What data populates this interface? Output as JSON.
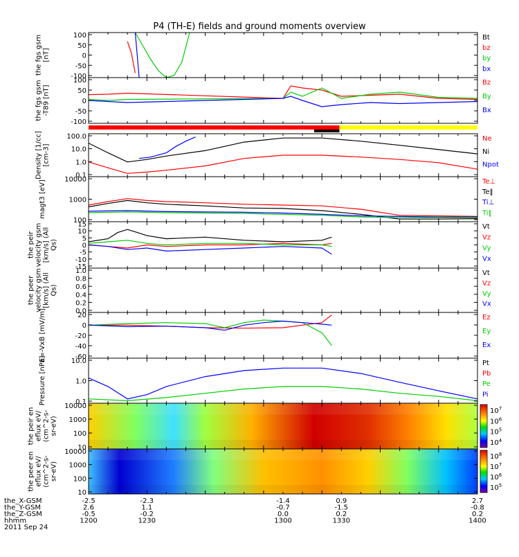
{
  "title": "P4 (TH-E) fields and ground moments overview",
  "bottom_rows": [
    {
      "label": "the_X-GSM",
      "values": [
        "-2.5",
        "-2.3",
        "-1.4",
        "0.9",
        "2.7"
      ]
    },
    {
      "label": "the_Y-GSM",
      "values": [
        "2.6",
        "1.1",
        "-0.7",
        "-1.5",
        "-0.8"
      ]
    },
    {
      "label": "the_Z-GSM",
      "values": [
        "-0.5",
        "-0.2",
        "0.0",
        "0.2",
        "0.2"
      ]
    },
    {
      "label": "hhmm",
      "values": [
        "1200",
        "1230",
        "1300",
        "1330",
        "1400"
      ]
    }
  ],
  "date_label": "2011 Sep 24",
  "colors": {
    "black": "#000000",
    "red": "#ff0000",
    "green": "#00cc00",
    "blue": "#0000ff",
    "yellow": "#ffff00"
  },
  "mode_bar": {
    "segments": [
      {
        "from": 1200,
        "to": 1329,
        "color": "red"
      },
      {
        "from": 1329,
        "to": 1400,
        "color": "yellow"
      },
      {
        "from": 1316,
        "to": 1329,
        "color": "black"
      }
    ]
  },
  "chart_data": [
    {
      "type": "line",
      "panel": "fgs",
      "ylabel": "the fgs gsm [nT]",
      "yticks": [
        "100",
        "50",
        "0",
        "-50",
        "-100"
      ],
      "ylim": [
        -100,
        100
      ],
      "legend": [
        {
          "name": "Bt",
          "color": "black"
        },
        {
          "name": "bz",
          "color": "red"
        },
        {
          "name": "by",
          "color": "green"
        },
        {
          "name": "bx",
          "color": "blue"
        }
      ],
      "series": [
        {
          "name": "by",
          "color": "green",
          "x": [
            1224,
            1228,
            1232,
            1236,
            1240,
            1244,
            1248,
            1252
          ],
          "y": [
            100,
            40,
            -20,
            -70,
            -100,
            -90,
            -30,
            100
          ]
        },
        {
          "name": "bx",
          "color": "blue",
          "x": [
            1224,
            1225,
            1226
          ],
          "y": [
            100,
            0,
            -100
          ]
        },
        {
          "name": "bz",
          "color": "red",
          "x": [
            1220,
            1222,
            1224
          ],
          "y": [
            60,
            10,
            -80
          ]
        }
      ]
    },
    {
      "type": "line",
      "panel": "fgs_t89",
      "ylabel": "the fgs gsm -T89 [nT]",
      "yticks": [
        "100",
        "50",
        "0",
        "-50",
        "-100"
      ],
      "ylim": [
        -110,
        110
      ],
      "legend": [
        {
          "name": "Bz",
          "color": "red"
        },
        {
          "name": "By",
          "color": "green"
        },
        {
          "name": "Bx",
          "color": "blue"
        }
      ],
      "series": [
        {
          "name": "Bz",
          "color": "red",
          "x": [
            1200,
            1210,
            1220,
            1300,
            1304,
            1310,
            1320,
            1330,
            1345,
            1360,
            1380,
            1400
          ],
          "y": [
            28,
            30,
            35,
            10,
            70,
            60,
            50,
            20,
            25,
            30,
            10,
            5
          ]
        },
        {
          "name": "By",
          "color": "green",
          "x": [
            1200,
            1210,
            1220,
            1300,
            1304,
            1310,
            1320,
            1330,
            1345,
            1360,
            1380,
            1400
          ],
          "y": [
            5,
            0,
            5,
            10,
            40,
            20,
            60,
            10,
            30,
            40,
            15,
            10
          ]
        },
        {
          "name": "Bx",
          "color": "blue",
          "x": [
            1200,
            1210,
            1220,
            1300,
            1304,
            1310,
            1320,
            1330,
            1345,
            1360,
            1380,
            1400
          ],
          "y": [
            0,
            -5,
            -10,
            10,
            20,
            0,
            -30,
            -20,
            -10,
            -15,
            -10,
            -5
          ]
        }
      ]
    },
    {
      "type": "line",
      "panel": "density",
      "yscale": "log",
      "ylabel": "Density [1/cc] [cm-3]",
      "yticks": [
        "100.0",
        "10.0",
        "1.0",
        "0.1"
      ],
      "ylim": [
        0.03,
        300
      ],
      "legend": [
        {
          "name": "Ne",
          "color": "red"
        },
        {
          "name": "Ni",
          "color": "black"
        },
        {
          "name": "Npot",
          "color": "blue"
        }
      ],
      "series": [
        {
          "name": "Ni",
          "color": "black",
          "x": [
            1200,
            1210,
            1220,
            1230,
            1240,
            1260,
            1280,
            1300,
            1320,
            1340,
            1360,
            1380,
            1400
          ],
          "y": [
            40,
            5,
            0.7,
            1.2,
            2.5,
            8,
            50,
            120,
            120,
            60,
            25,
            10,
            4
          ]
        },
        {
          "name": "Ne",
          "color": "red",
          "x": [
            1200,
            1210,
            1220,
            1230,
            1240,
            1260,
            1280,
            1300,
            1320,
            1340,
            1360,
            1380,
            1400
          ],
          "y": [
            0.7,
            0.2,
            0.06,
            0.08,
            0.12,
            0.3,
            1.5,
            3,
            3,
            2,
            1.2,
            0.6,
            0.15
          ]
        },
        {
          "name": "Npot",
          "color": "blue",
          "x": [
            1226,
            1232,
            1240,
            1245,
            1250,
            1255
          ],
          "y": [
            1.5,
            2,
            5,
            20,
            60,
            150
          ]
        }
      ]
    },
    {
      "type": "line",
      "panel": "magt3",
      "yscale": "log",
      "ylabel": "magt3 [eV]",
      "yticks": [
        "10000",
        "1000",
        "100"
      ],
      "ylim": [
        90,
        12000
      ],
      "legend": [
        {
          "name": "Te⊥",
          "color": "red"
        },
        {
          "name": "Te‖",
          "color": "black"
        },
        {
          "name": "Ti⊥",
          "color": "blue"
        },
        {
          "name": "Ti‖",
          "color": "green"
        }
      ],
      "series": [
        {
          "name": "Te⊥",
          "color": "red",
          "x": [
            1200,
            1210,
            1220,
            1230,
            1240,
            1260,
            1280,
            1300,
            1320,
            1340,
            1360,
            1380,
            1400
          ],
          "y": [
            550,
            800,
            1100,
            900,
            800,
            700,
            600,
            550,
            500,
            350,
            180,
            170,
            160
          ]
        },
        {
          "name": "Te‖",
          "color": "black",
          "x": [
            1200,
            1210,
            1220,
            1230,
            1240,
            1260,
            1280,
            1300,
            1320,
            1340,
            1360,
            1380,
            1400
          ],
          "y": [
            450,
            650,
            900,
            700,
            600,
            500,
            400,
            380,
            300,
            200,
            120,
            120,
            125
          ]
        },
        {
          "name": "Ti⊥",
          "color": "blue",
          "x": [
            1200,
            1220,
            1240,
            1260,
            1280,
            1300,
            1320,
            1340,
            1360,
            1380,
            1400
          ],
          "y": [
            280,
            300,
            270,
            260,
            250,
            230,
            200,
            170,
            160,
            150,
            150
          ]
        },
        {
          "name": "Ti‖",
          "color": "green",
          "x": [
            1200,
            1220,
            1240,
            1260,
            1280,
            1300,
            1320,
            1340,
            1360,
            1380,
            1400
          ],
          "y": [
            240,
            260,
            240,
            230,
            220,
            200,
            180,
            150,
            140,
            140,
            140
          ]
        }
      ]
    },
    {
      "type": "line",
      "panel": "peir_velocity",
      "ylabel": "the peir velocity gsm [km/s] (All Qs)",
      "yticks": [
        "15",
        "10",
        "5",
        "0",
        "-5",
        "-10",
        "-15"
      ],
      "ylim": [
        -15,
        15
      ],
      "legend": [
        {
          "name": "Vt",
          "color": "black"
        },
        {
          "name": "Vz",
          "color": "red"
        },
        {
          "name": "Vy",
          "color": "green"
        },
        {
          "name": "Vx",
          "color": "blue"
        }
      ],
      "series": [
        {
          "name": "Vt",
          "color": "black",
          "x": [
            1200,
            1210,
            1215,
            1220,
            1225,
            1230,
            1240,
            1260,
            1280,
            1300,
            1320,
            1325
          ],
          "y": [
            2,
            4,
            8,
            10,
            8,
            6,
            4,
            5,
            3,
            2,
            3,
            5
          ]
        },
        {
          "name": "Vz",
          "color": "red",
          "x": [
            1200,
            1210,
            1220,
            1230,
            1240,
            1260,
            1280,
            1300,
            1320,
            1325
          ],
          "y": [
            0,
            -1,
            -2,
            0,
            -1,
            0,
            0,
            1,
            0,
            1
          ]
        },
        {
          "name": "Vy",
          "color": "green",
          "x": [
            1200,
            1210,
            1220,
            1230,
            1240,
            1260,
            1280,
            1300,
            1320,
            1325
          ],
          "y": [
            1,
            2,
            3,
            1,
            0,
            1,
            1,
            0,
            0,
            -1
          ]
        },
        {
          "name": "Vx",
          "color": "blue",
          "x": [
            1200,
            1210,
            1220,
            1230,
            1240,
            1260,
            1280,
            1300,
            1320,
            1325
          ],
          "y": [
            0,
            -1,
            -3,
            -2,
            -4,
            -3,
            -2,
            -1,
            -2,
            -6
          ]
        }
      ]
    },
    {
      "type": "line",
      "panel": "peer_velocity",
      "ylabel": "the peer velocity gsm [km/s] (All Qs)",
      "yticks": [
        "1.0",
        "0.8",
        "0.6",
        "0.4",
        "0.2",
        "0.0"
      ],
      "ylim": [
        0,
        1
      ],
      "legend": [
        {
          "name": "Vt",
          "color": "black"
        },
        {
          "name": "Vz",
          "color": "red"
        },
        {
          "name": "Vy",
          "color": "green"
        },
        {
          "name": "Vx",
          "color": "blue"
        }
      ],
      "series": []
    },
    {
      "type": "line",
      "panel": "efield",
      "ylabel": "E=-VxB [mV/m]",
      "yticks": [
        "20",
        "0",
        "-20",
        "-40",
        "-60"
      ],
      "ylim": [
        -65,
        25
      ],
      "legend": [
        {
          "name": "Ez",
          "color": "red"
        },
        {
          "name": "Ey",
          "color": "green"
        },
        {
          "name": "Ex",
          "color": "blue"
        }
      ],
      "series": [
        {
          "name": "Ez",
          "color": "red",
          "x": [
            1200,
            1220,
            1240,
            1260,
            1280,
            1300,
            1310,
            1320,
            1325
          ],
          "y": [
            0,
            0,
            -2,
            -5,
            -6,
            -5,
            0,
            5,
            20
          ]
        },
        {
          "name": "Ey",
          "color": "green",
          "x": [
            1200,
            1220,
            1240,
            1260,
            1270,
            1280,
            1290,
            1300,
            1310,
            1315,
            1320,
            1325
          ],
          "y": [
            0,
            3,
            5,
            3,
            -5,
            5,
            10,
            8,
            5,
            -5,
            -15,
            -40
          ]
        },
        {
          "name": "Ex",
          "color": "blue",
          "x": [
            1200,
            1220,
            1240,
            1260,
            1270,
            1280,
            1290,
            1300,
            1310,
            1320,
            1325
          ],
          "y": [
            0,
            -3,
            -2,
            -5,
            -10,
            0,
            5,
            8,
            5,
            2,
            0
          ]
        }
      ]
    },
    {
      "type": "line",
      "panel": "pressure",
      "yscale": "log",
      "ylabel": "Pressure [nPa]",
      "yticks": [
        "10.0",
        "1.0",
        "0.1"
      ],
      "ylim": [
        0.02,
        30
      ],
      "legend": [
        {
          "name": "Pt",
          "color": "black"
        },
        {
          "name": "Pb",
          "color": "red"
        },
        {
          "name": "Pe",
          "color": "green"
        },
        {
          "name": "Pi",
          "color": "blue"
        }
      ],
      "series": [
        {
          "name": "Pi",
          "color": "blue",
          "x": [
            1200,
            1210,
            1220,
            1230,
            1240,
            1260,
            1280,
            1300,
            1320,
            1340,
            1360,
            1380,
            1400
          ],
          "y": [
            1.2,
            0.3,
            0.04,
            0.08,
            0.3,
            1.5,
            4,
            6,
            6,
            2.5,
            0.6,
            0.15,
            0.04
          ]
        },
        {
          "name": "Pe",
          "color": "green",
          "x": [
            1200,
            1220,
            1240,
            1260,
            1280,
            1300,
            1320,
            1340,
            1360,
            1380,
            1400
          ],
          "y": [
            0.04,
            0.03,
            0.05,
            0.1,
            0.2,
            0.3,
            0.3,
            0.2,
            0.1,
            0.06,
            0.03
          ]
        }
      ]
    },
    {
      "type": "heatmap",
      "panel": "peir_spectrogram",
      "ylabel": "the peir en eflux eV/ (cm^2-s- sr-eV)",
      "yticks": [
        "10000",
        "1000",
        "100",
        "10"
      ],
      "colorbar_ticks": [
        "10^7",
        "10^6",
        "10^5",
        "10^4"
      ]
    },
    {
      "type": "heatmap",
      "panel": "peer_spectrogram",
      "ylabel": "the peer en eflux eV/ (cm^2-s- sr-eV)",
      "yticks": [
        "10000",
        "1000",
        "100",
        "10"
      ],
      "colorbar_ticks": [
        "10^8",
        "10^7",
        "10^6",
        "10^5"
      ]
    }
  ]
}
